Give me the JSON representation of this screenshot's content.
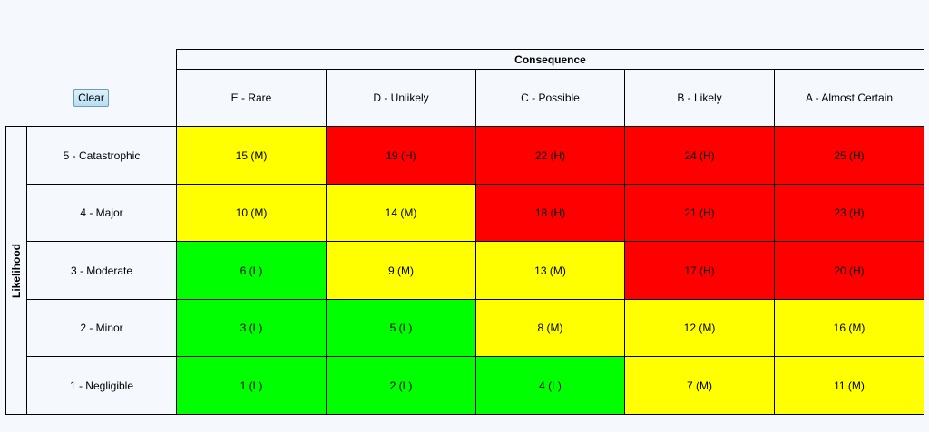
{
  "toolbar": {
    "clear_label": "Clear"
  },
  "matrix": {
    "consequence_title": "Consequence",
    "likelihood_title": "Likelihood",
    "columns": [
      "E - Rare",
      "D - Unlikely",
      "C - Possible",
      "B - Likely",
      "A - Almost Certain"
    ],
    "rows": [
      {
        "label": "5 - Catastrophic",
        "cells": [
          "15 (M)",
          "19 (H)",
          "22 (H)",
          "24 (H)",
          "25 (H)"
        ]
      },
      {
        "label": "4 - Major",
        "cells": [
          "10 (M)",
          "14 (M)",
          "18 (H)",
          "21 (H)",
          "23 (H)"
        ]
      },
      {
        "label": "3 - Moderate",
        "cells": [
          "6 (L)",
          "9 (M)",
          "13 (M)",
          "17 (H)",
          "20 (H)"
        ]
      },
      {
        "label": "2 - Minor",
        "cells": [
          "3 (L)",
          "5 (L)",
          "8 (M)",
          "12 (M)",
          "16 (M)"
        ]
      },
      {
        "label": "1 - Negligible",
        "cells": [
          "1 (L)",
          "2 (L)",
          "4 (L)",
          "7 (M)",
          "11 (M)"
        ]
      }
    ],
    "level_colors": {
      "L": "#00ff00",
      "M": "#ffff00",
      "H": "#ff0000"
    }
  }
}
